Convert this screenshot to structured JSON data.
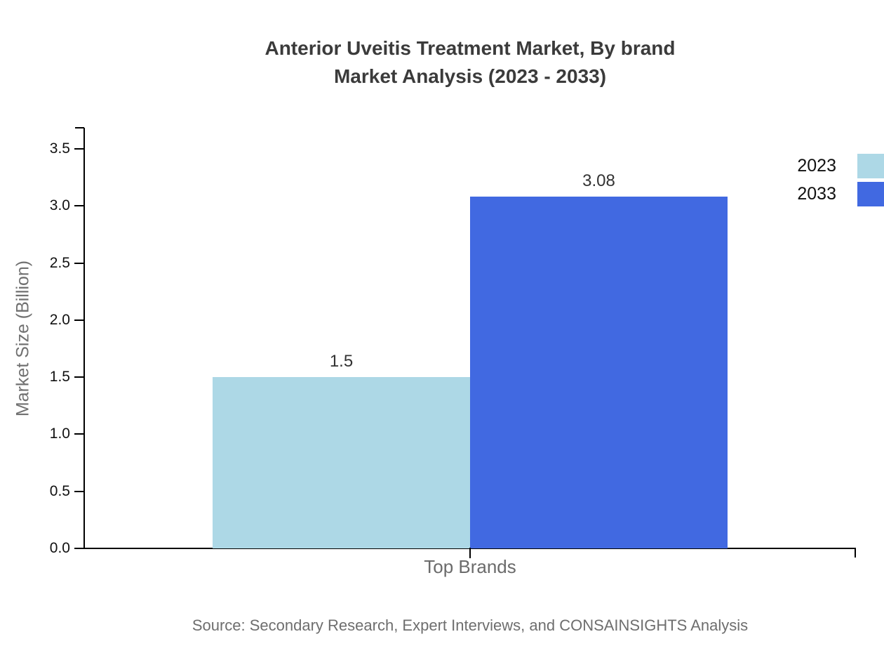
{
  "title": {
    "line1": "Anterior Uveitis Treatment Market, By brand",
    "line2": "Market Analysis (2023 - 2033)"
  },
  "chart_data": {
    "type": "bar",
    "categories": [
      "Top Brands"
    ],
    "series": [
      {
        "name": "2023",
        "values": [
          1.5
        ],
        "color": "#ADD8E6",
        "value_label": "1.5"
      },
      {
        "name": "2033",
        "values": [
          3.08
        ],
        "color": "#4169E1",
        "value_label": "3.08"
      }
    ],
    "title": "Anterior Uveitis Treatment Market, By brand Market Analysis (2023 - 2033)",
    "xlabel": "Top Brands",
    "ylabel": "Market Size (Billion)",
    "ylim": [
      0,
      3.68
    ],
    "yticks": [
      "0.0",
      "0.5",
      "1.0",
      "1.5",
      "2.0",
      "2.5",
      "3.0",
      "3.5"
    ],
    "grid": false,
    "legend_position": "top-right"
  },
  "legend": {
    "items": [
      {
        "label": "2023",
        "color": "#ADD8E6"
      },
      {
        "label": "2033",
        "color": "#4169E1"
      }
    ]
  },
  "source": "Source: Secondary Research, Expert Interviews, and CONSAINSIGHTS Analysis",
  "colors": {
    "title": "#3b3b3b",
    "axis": "#000000",
    "tick_label": "#111111",
    "axis_title": "#707070",
    "category_label": "#6b6b6b",
    "source": "#6e6e6e"
  }
}
